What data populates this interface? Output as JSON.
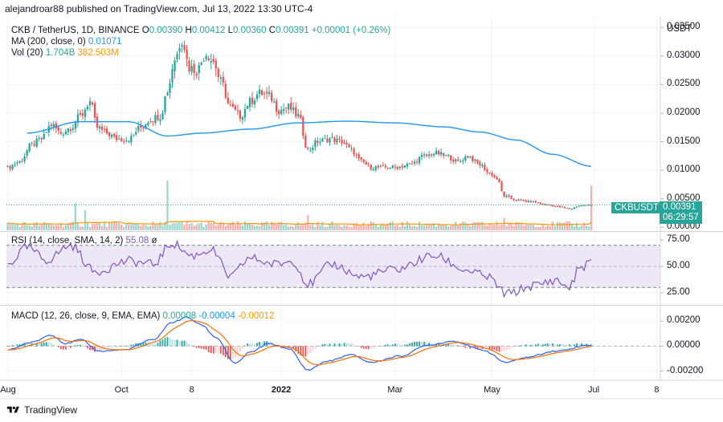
{
  "header": {
    "publisher_line": "alejandroar88 published on TradingView.com, Jul 13, 2022 13:30 UTC-4"
  },
  "footer": {
    "brand": "TradingView"
  },
  "colors": {
    "up": "#26a69a",
    "down": "#ef5350",
    "ma": "#2196f3",
    "vol_ma": "#ff9800",
    "rsi": "#7e57c2",
    "macd": "#2962ff",
    "signal": "#ff6d00",
    "rsi_band": "#ede7f6"
  },
  "price_pane": {
    "legend": {
      "symbol": "CKB / TetherUS, 1D, BINANCE",
      "o_label": "O",
      "o_value": "0.00390",
      "h_label": "H",
      "h_value": "0.00412",
      "l_label": "L",
      "l_value": "0.00360",
      "c_label": "C",
      "c_value": "0.00391",
      "change": "+0.00001 (+0.26%)",
      "ma_label": "MA (200, close, 0)",
      "ma_value": "0.01071",
      "vol_label": "Vol (20)",
      "vol_value": "1.704B",
      "vol_ma_value": "382.503M"
    },
    "currency": "USDT",
    "symbol_badge": "CKBUSDT",
    "last_price": "0.00391",
    "countdown": "06:29:57"
  },
  "rsi_pane": {
    "legend_label": "RSI (14, close, SMA, 14, 2)",
    "legend_value": "55.08",
    "legend_extra": "ø"
  },
  "macd_pane": {
    "legend_label": "MACD (12, 26, close, 9, EMA, EMA)",
    "v1": "0.00008",
    "v2": "-0.00004",
    "v3": "-0.00012"
  },
  "chart_data": [
    {
      "type": "candlestick",
      "title": "CKB / TetherUS, 1D, BINANCE",
      "ylabel": "USDT",
      "ylim": [
        -0.0005,
        0.037
      ],
      "yticks": [
        "0.03500",
        "0.03000",
        "0.02500",
        "0.02000",
        "0.01500",
        "0.01000",
        "0.00500",
        "0.00000"
      ],
      "ytick_values": [
        0.035,
        0.03,
        0.025,
        0.02,
        0.015,
        0.01,
        0.005,
        0.0
      ],
      "xticks": [
        "Aug",
        "Oct",
        "8",
        "2022",
        "Mar",
        "May",
        "Jul",
        "8"
      ],
      "close_anchors": [
        [
          0,
          0.0105
        ],
        [
          5,
          0.0115
        ],
        [
          10,
          0.0145
        ],
        [
          14,
          0.0155
        ],
        [
          18,
          0.018
        ],
        [
          22,
          0.0165
        ],
        [
          26,
          0.0175
        ],
        [
          30,
          0.0195
        ],
        [
          34,
          0.022
        ],
        [
          37,
          0.0175
        ],
        [
          41,
          0.0165
        ],
        [
          45,
          0.0155
        ],
        [
          50,
          0.0155
        ],
        [
          55,
          0.0175
        ],
        [
          59,
          0.019
        ],
        [
          63,
          0.0195
        ],
        [
          66,
          0.024
        ],
        [
          69,
          0.0295
        ],
        [
          72,
          0.033
        ],
        [
          75,
          0.028
        ],
        [
          78,
          0.0275
        ],
        [
          82,
          0.0305
        ],
        [
          85,
          0.029
        ],
        [
          88,
          0.0255
        ],
        [
          92,
          0.021
        ],
        [
          96,
          0.0195
        ],
        [
          100,
          0.022
        ],
        [
          104,
          0.0235
        ],
        [
          108,
          0.023
        ],
        [
          112,
          0.0205
        ],
        [
          116,
          0.021
        ],
        [
          120,
          0.0195
        ],
        [
          124,
          0.0135
        ],
        [
          128,
          0.015
        ],
        [
          133,
          0.0155
        ],
        [
          138,
          0.015
        ],
        [
          142,
          0.0135
        ],
        [
          146,
          0.0115
        ],
        [
          150,
          0.0105
        ],
        [
          155,
          0.0105
        ],
        [
          160,
          0.0105
        ],
        [
          166,
          0.011
        ],
        [
          172,
          0.0125
        ],
        [
          177,
          0.013
        ],
        [
          181,
          0.0125
        ],
        [
          186,
          0.0115
        ],
        [
          190,
          0.0125
        ],
        [
          195,
          0.011
        ],
        [
          199,
          0.0095
        ],
        [
          202,
          0.0085
        ],
        [
          205,
          0.0055
        ],
        [
          210,
          0.0048
        ],
        [
          216,
          0.0045
        ],
        [
          222,
          0.004
        ],
        [
          228,
          0.0036
        ],
        [
          232,
          0.0032
        ],
        [
          236,
          0.0038
        ],
        [
          241,
          0.0039
        ]
      ],
      "ma200_anchors": [
        [
          8,
          0.0165
        ],
        [
          30,
          0.0185
        ],
        [
          50,
          0.0185
        ],
        [
          66,
          0.016
        ],
        [
          80,
          0.0165
        ],
        [
          100,
          0.0172
        ],
        [
          120,
          0.0183
        ],
        [
          140,
          0.0186
        ],
        [
          160,
          0.0183
        ],
        [
          180,
          0.0176
        ],
        [
          195,
          0.0167
        ],
        [
          210,
          0.0153
        ],
        [
          225,
          0.0128
        ],
        [
          241,
          0.0107
        ]
      ],
      "volume_spikes": [
        [
          28,
          0.55
        ],
        [
          32,
          0.4
        ],
        [
          66,
          1.0
        ],
        [
          124,
          0.3
        ],
        [
          205,
          0.25
        ],
        [
          241,
          0.9
        ]
      ],
      "last_close": 0.00391
    },
    {
      "type": "line",
      "title": "RSI (14, close, SMA, 14, 2)",
      "ylim": [
        15,
        82
      ],
      "yticks": [
        "75.00",
        "50.00",
        "25.00"
      ],
      "ytick_values": [
        75,
        50,
        25
      ],
      "band": [
        30,
        70
      ],
      "anchors": [
        [
          0,
          52
        ],
        [
          8,
          68
        ],
        [
          16,
          56
        ],
        [
          26,
          70
        ],
        [
          36,
          45
        ],
        [
          50,
          55
        ],
        [
          60,
          52
        ],
        [
          68,
          72
        ],
        [
          76,
          60
        ],
        [
          84,
          66
        ],
        [
          92,
          40
        ],
        [
          100,
          58
        ],
        [
          110,
          52
        ],
        [
          118,
          55
        ],
        [
          124,
          33
        ],
        [
          134,
          52
        ],
        [
          146,
          40
        ],
        [
          160,
          47
        ],
        [
          176,
          60
        ],
        [
          190,
          46
        ],
        [
          198,
          40
        ],
        [
          206,
          24
        ],
        [
          218,
          32
        ],
        [
          226,
          37
        ],
        [
          232,
          30
        ],
        [
          236,
          48
        ],
        [
          241,
          55
        ]
      ]
    },
    {
      "type": "macd",
      "title": "MACD (12, 26, close, 9, EMA, EMA)",
      "ylim": [
        -0.0026,
        0.0031
      ],
      "yticks": [
        "0.00200",
        "0.00000",
        "-0.00200"
      ],
      "ytick_values": [
        0.002,
        0.0,
        -0.002
      ],
      "macd_anchors": [
        [
          0,
          -0.0003
        ],
        [
          10,
          0.0003
        ],
        [
          18,
          0.0009
        ],
        [
          24,
          0.0002
        ],
        [
          30,
          0.0005
        ],
        [
          38,
          -0.0004
        ],
        [
          48,
          -0.0003
        ],
        [
          60,
          0.0005
        ],
        [
          68,
          0.0019
        ],
        [
          74,
          0.0023
        ],
        [
          80,
          0.0017
        ],
        [
          86,
          0.0007
        ],
        [
          94,
          -0.0014
        ],
        [
          100,
          -0.0005
        ],
        [
          108,
          0.0002
        ],
        [
          116,
          -0.0002
        ],
        [
          124,
          -0.0019
        ],
        [
          132,
          -0.0012
        ],
        [
          142,
          -0.0007
        ],
        [
          150,
          -0.0013
        ],
        [
          162,
          -0.0008
        ],
        [
          174,
          0.0001
        ],
        [
          184,
          0.0004
        ],
        [
          196,
          -0.0003
        ],
        [
          206,
          -0.0013
        ],
        [
          214,
          -0.0009
        ],
        [
          226,
          -0.0004
        ],
        [
          241,
          0.0001
        ]
      ]
    }
  ]
}
